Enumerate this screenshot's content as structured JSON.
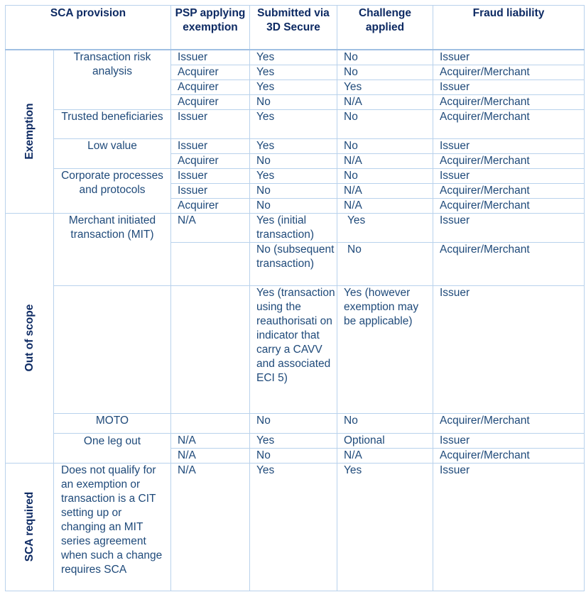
{
  "headers": [
    "SCA provision",
    "PSP applying exemption",
    "Submitted via 3D Secure",
    "Challenge applied",
    "Fraud liability"
  ],
  "groups": {
    "exemption": "Exemption",
    "out_of_scope": "Out of scope",
    "sca_required": "SCA required"
  },
  "provisions": {
    "tra": "Transaction risk analysis",
    "trusted": "Trusted beneficiaries",
    "low": "Low value",
    "corporate": "Corporate processes and protocols",
    "mit": "Merchant initiated transaction (MIT)",
    "moto": "MOTO",
    "one_leg": "One leg out",
    "not_qualify": "Does not qualify for an exemption or transaction is a CIT setting up or changing an MIT series agreement when such a change requires SCA"
  },
  "rows": [
    [
      "Issuer",
      "Yes",
      "No",
      "Issuer"
    ],
    [
      "Acquirer",
      "Yes",
      "No",
      "Acquirer/Merchant"
    ],
    [
      "Acquirer",
      "Yes",
      "Yes",
      "Issuer"
    ],
    [
      "Acquirer",
      "No",
      "N/A",
      "Acquirer/Merchant"
    ],
    [
      "Issuer",
      "Yes",
      "No",
      "Acquirer/Merchant"
    ],
    [
      "Issuer",
      "Yes",
      "No",
      "Issuer"
    ],
    [
      "Acquirer",
      "No",
      "N/A",
      "Acquirer/Merchant"
    ],
    [
      "Issuer",
      "Yes",
      "No",
      "Issuer"
    ],
    [
      "Issuer",
      "No",
      "N/A",
      "Acquirer/Merchant"
    ],
    [
      "Acquirer",
      "No",
      "N/A",
      "Acquirer/Merchant"
    ],
    [
      "N/A",
      "Yes (initial transaction)",
      "Yes",
      "Issuer"
    ],
    [
      "",
      "No (subsequent transaction)",
      "No",
      "Acquirer/Merchant"
    ],
    [
      "",
      "Yes (transaction using the reauthorisati on indicator that carry a CAVV and associated ECI 5)",
      "Yes (however exemption may be applicable)",
      "Issuer"
    ],
    [
      "",
      "No",
      "No",
      "Acquirer/Merchant"
    ],
    [
      "N/A",
      "Yes",
      "Optional",
      "Issuer"
    ],
    [
      "N/A",
      "No",
      "N/A",
      "Acquirer/Merchant"
    ],
    [
      "N/A",
      "Yes",
      "Yes",
      "Issuer"
    ]
  ]
}
